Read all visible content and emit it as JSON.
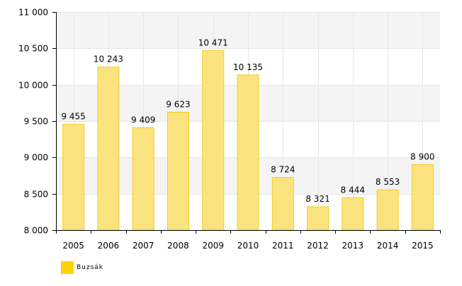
{
  "chart_data": {
    "type": "bar",
    "categories": [
      "2005",
      "2006",
      "2007",
      "2008",
      "2009",
      "2010",
      "2011",
      "2012",
      "2013",
      "2014",
      "2015"
    ],
    "series": [
      {
        "name": "Buzsák",
        "values": [
          9455,
          10243,
          9409,
          9623,
          10471,
          10135,
          8724,
          8321,
          8444,
          8553,
          8900
        ],
        "value_labels": [
          "9 455",
          "10 243",
          "9 409",
          "9 623",
          "10 471",
          "10 135",
          "8 724",
          "8 321",
          "8 444",
          "8 553",
          "8 900"
        ]
      }
    ],
    "title": "",
    "xlabel": "",
    "ylabel": "",
    "ylim": [
      8000,
      11000
    ],
    "yticks": [
      8000,
      8500,
      9000,
      9500,
      10000,
      10500,
      11000
    ],
    "ytick_labels": [
      "8 000",
      "8 500",
      "9 000",
      "9 500",
      "10 000",
      "10 500",
      "11 000"
    ],
    "grid": true,
    "legend_position": "bottom-left",
    "colors": {
      "bar_fill": "#fbe37f",
      "bar_stroke": "#f5cc1d",
      "legend_swatch": "#ffd200",
      "band": "#f4f4f4",
      "grid": "#e6e6e6",
      "axis": "#000000"
    }
  }
}
